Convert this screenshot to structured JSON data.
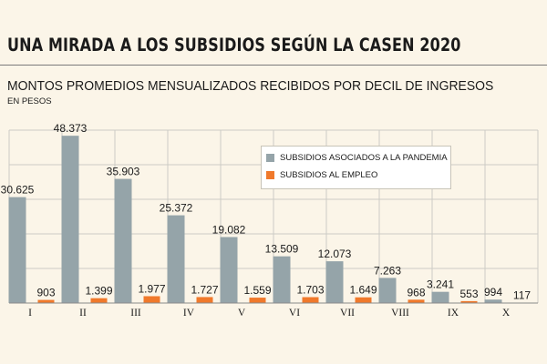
{
  "header": {
    "title": "UNA MIRADA A LOS SUBSIDIOS SEGÚN LA CASEN 2020",
    "subtitle": "MONTOS PROMEDIOS MENSUALIZADOS RECIBIDOS POR DECIL DE INGRESOS",
    "unit": "EN PESOS"
  },
  "colors": {
    "background": "#fbf5e8",
    "pandemia": "#95a4a9",
    "empleo": "#f0792b",
    "gridline": "#cdcbc6"
  },
  "chart_data": {
    "type": "bar",
    "title": "MONTOS PROMEDIOS MENSUALIZADOS RECIBIDOS POR DECIL DE INGRESOS",
    "xlabel": "",
    "ylabel": "",
    "ylim": [
      0,
      50000
    ],
    "grid": true,
    "legend_position": "top-right",
    "categories": [
      "I",
      "II",
      "III",
      "IV",
      "V",
      "VI",
      "VII",
      "VIII",
      "IX",
      "X"
    ],
    "series": [
      {
        "name": "SUBSIDIOS ASOCIADOS A LA PANDEMIA",
        "values": [
          30625,
          48373,
          35903,
          25372,
          19082,
          13509,
          12073,
          7263,
          3241,
          994
        ],
        "labels": [
          "30.625",
          "48.373",
          "35.903",
          "25.372",
          "19.082",
          "13.509",
          "12.073",
          "7.263",
          "3.241",
          "994"
        ]
      },
      {
        "name": "SUBSIDIOS AL EMPLEO",
        "values": [
          903,
          1399,
          1977,
          1727,
          1559,
          1703,
          1649,
          968,
          553,
          117
        ],
        "labels": [
          "903",
          "1.399",
          "1.977",
          "1.727",
          "1.559",
          "1.703",
          "1.649",
          "968",
          "553",
          "117"
        ]
      }
    ]
  }
}
